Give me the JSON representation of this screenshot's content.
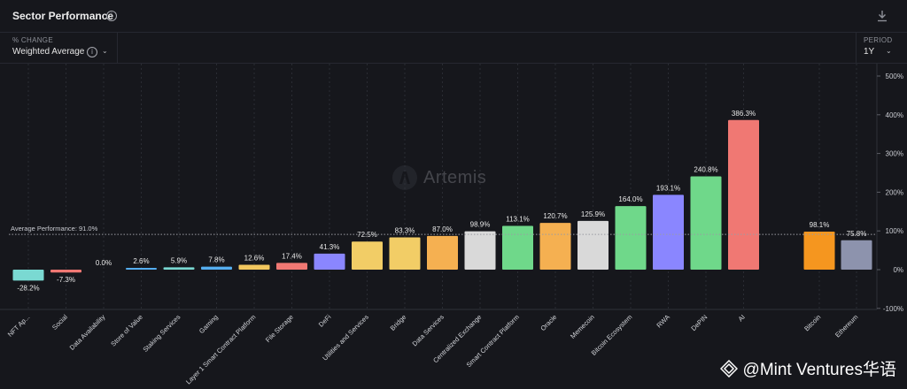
{
  "header": {
    "title": "Sector Performance"
  },
  "controls": {
    "change_label": "% CHANGE",
    "change_value": "Weighted Average",
    "period_label": "PERIOD",
    "period_value": "1Y"
  },
  "branding": {
    "center_mark": "Artemis",
    "watermark": "@Mint Ventures华语"
  },
  "chart_data": {
    "type": "bar",
    "title": "Sector Performance",
    "categories": [
      "NFT Ap...",
      "Social",
      "Data Availability",
      "Store of Value",
      "Staking Services",
      "Gaming",
      "Layer 1 Smart Contract Platform",
      "File Storage",
      "DeFi",
      "Utilities and Services",
      "Bridge",
      "Data Services",
      "Centralized Exchange",
      "Smart Contract Platform",
      "Oracle",
      "Memecoin",
      "Bitcoin Ecosystem",
      "RWA",
      "DePIN",
      "AI",
      "Bitcoin",
      "Ethereum"
    ],
    "values": [
      -28.2,
      -7.3,
      0.0,
      2.6,
      5.9,
      7.8,
      12.6,
      17.4,
      41.3,
      72.5,
      83.3,
      87.0,
      98.9,
      113.1,
      120.7,
      125.9,
      164.0,
      193.1,
      240.8,
      386.3,
      98.1,
      75.8
    ],
    "value_labels": [
      "-28.2%",
      "-7.3%",
      "0.0%",
      "2.6%",
      "5.9%",
      "7.8%",
      "12.6%",
      "17.4%",
      "41.3%",
      "72.5%",
      "83.3%",
      "87.0%",
      "98.9%",
      "113.1%",
      "120.7%",
      "125.9%",
      "164.0%",
      "193.1%",
      "240.8%",
      "386.3%",
      "98.1%",
      "75.8%"
    ],
    "colors": [
      "#7ad9d2",
      "#f07873",
      "#7ad9d2",
      "#55aef0",
      "#7ad9d2",
      "#55aef0",
      "#f2c75e",
      "#f07873",
      "#8a86ff",
      "#f2cd66",
      "#f2cd66",
      "#f5b051",
      "#d9d9d9",
      "#6fd88a",
      "#f5b051",
      "#d9d9d9",
      "#6fd88a",
      "#8a86ff",
      "#6fd88a",
      "#f07873",
      "#f5961f",
      "#8d93ad"
    ],
    "y_ticks": [
      500,
      400,
      300,
      200,
      100,
      0,
      -100
    ],
    "y_tick_labels": [
      "500%",
      "400%",
      "300%",
      "200%",
      "100%",
      "0%",
      "-100%"
    ],
    "ylim": [
      -100,
      500
    ],
    "average": 91.0,
    "average_label": "Average Performance: 91.0%",
    "grid": true,
    "xlabel": "",
    "ylabel": ""
  }
}
